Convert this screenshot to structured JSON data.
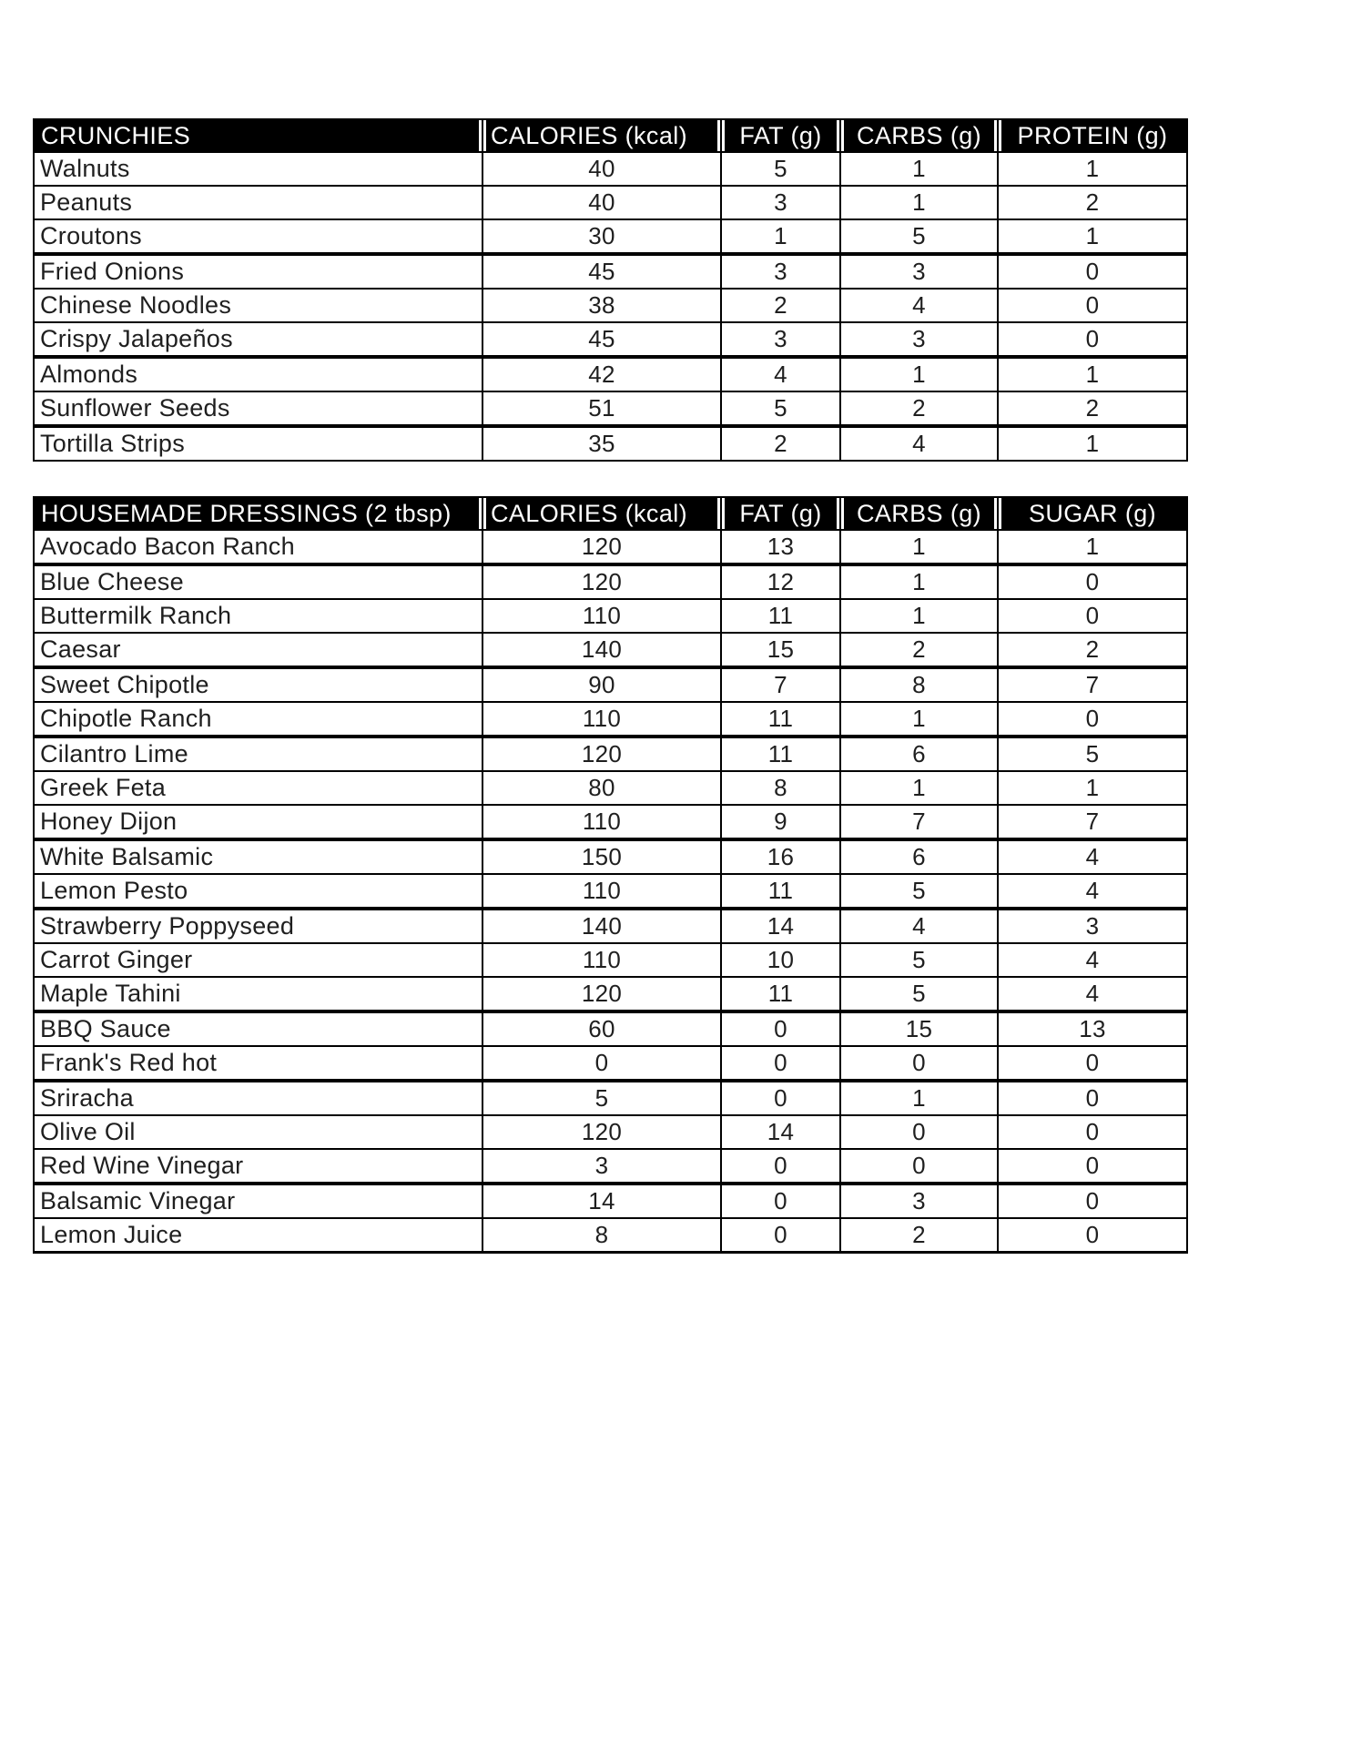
{
  "document": {
    "tables": [
      {
        "id": "crunchies",
        "title": "CRUNCHIES",
        "columns": [
          "CALORIES (kcal)",
          "FAT (g)",
          "CARBS (g)",
          "PROTEIN (g)"
        ],
        "rows": [
          {
            "name": "Walnuts",
            "values": [
              "40",
              "5",
              "1",
              "1"
            ],
            "group_end": false
          },
          {
            "name": "Peanuts",
            "values": [
              "40",
              "3",
              "1",
              "2"
            ],
            "group_end": false
          },
          {
            "name": "Croutons",
            "values": [
              "30",
              "1",
              "5",
              "1"
            ],
            "group_end": true
          },
          {
            "name": "Fried Onions",
            "values": [
              "45",
              "3",
              "3",
              "0"
            ],
            "group_end": false
          },
          {
            "name": "Chinese Noodles",
            "values": [
              "38",
              "2",
              "4",
              "0"
            ],
            "group_end": false
          },
          {
            "name": "Crispy Jalapeños",
            "values": [
              "45",
              "3",
              "3",
              "0"
            ],
            "group_end": true
          },
          {
            "name": "Almonds",
            "values": [
              "42",
              "4",
              "1",
              "1"
            ],
            "group_end": false
          },
          {
            "name": "Sunflower Seeds",
            "values": [
              "51",
              "5",
              "2",
              "2"
            ],
            "group_end": true
          },
          {
            "name": "Tortilla Strips",
            "values": [
              "35",
              "2",
              "4",
              "1"
            ],
            "group_end": false
          }
        ]
      },
      {
        "id": "dressings",
        "title": "HOUSEMADE DRESSINGS (2 tbsp)",
        "columns": [
          "CALORIES (kcal)",
          "FAT (g)",
          "CARBS (g)",
          "SUGAR (g)"
        ],
        "rows": [
          {
            "name": "Avocado Bacon Ranch",
            "values": [
              "120",
              "13",
              "1",
              "1"
            ],
            "group_end": true
          },
          {
            "name": "Blue Cheese",
            "values": [
              "120",
              "12",
              "1",
              "0"
            ],
            "group_end": false
          },
          {
            "name": "Buttermilk Ranch",
            "values": [
              "110",
              "11",
              "1",
              "0"
            ],
            "group_end": false
          },
          {
            "name": "Caesar",
            "values": [
              "140",
              "15",
              "2",
              "2"
            ],
            "group_end": true
          },
          {
            "name": "Sweet Chipotle",
            "values": [
              "90",
              "7",
              "8",
              "7"
            ],
            "group_end": false
          },
          {
            "name": "Chipotle Ranch",
            "values": [
              "110",
              "11",
              "1",
              "0"
            ],
            "group_end": true
          },
          {
            "name": "Cilantro Lime",
            "values": [
              "120",
              "11",
              "6",
              "5"
            ],
            "group_end": false
          },
          {
            "name": "Greek Feta",
            "values": [
              "80",
              "8",
              "1",
              "1"
            ],
            "group_end": false
          },
          {
            "name": "Honey Dijon",
            "values": [
              "110",
              "9",
              "7",
              "7"
            ],
            "group_end": true
          },
          {
            "name": "White Balsamic",
            "values": [
              "150",
              "16",
              "6",
              "4"
            ],
            "group_end": false
          },
          {
            "name": "Lemon Pesto",
            "values": [
              "110",
              "11",
              "5",
              "4"
            ],
            "group_end": true
          },
          {
            "name": "Strawberry Poppyseed",
            "values": [
              "140",
              "14",
              "4",
              "3"
            ],
            "group_end": false
          },
          {
            "name": "Carrot Ginger",
            "values": [
              "110",
              "10",
              "5",
              "4"
            ],
            "group_end": false
          },
          {
            "name": "Maple Tahini",
            "values": [
              "120",
              "11",
              "5",
              "4"
            ],
            "group_end": true
          },
          {
            "name": "BBQ Sauce",
            "values": [
              "60",
              "0",
              "15",
              "13"
            ],
            "group_end": false
          },
          {
            "name": "Frank's Red hot",
            "values": [
              "0",
              "0",
              "0",
              "0"
            ],
            "group_end": true
          },
          {
            "name": "Sriracha",
            "values": [
              "5",
              "0",
              "1",
              "0"
            ],
            "group_end": false
          },
          {
            "name": "Olive Oil",
            "values": [
              "120",
              "14",
              "0",
              "0"
            ],
            "group_end": false
          },
          {
            "name": "Red Wine Vinegar",
            "values": [
              "3",
              "0",
              "0",
              "0"
            ],
            "group_end": true
          },
          {
            "name": "Balsamic Vinegar",
            "values": [
              "14",
              "0",
              "3",
              "0"
            ],
            "group_end": false
          },
          {
            "name": "Lemon Juice",
            "values": [
              "8",
              "0",
              "2",
              "0"
            ],
            "group_end": false
          }
        ]
      }
    ]
  }
}
